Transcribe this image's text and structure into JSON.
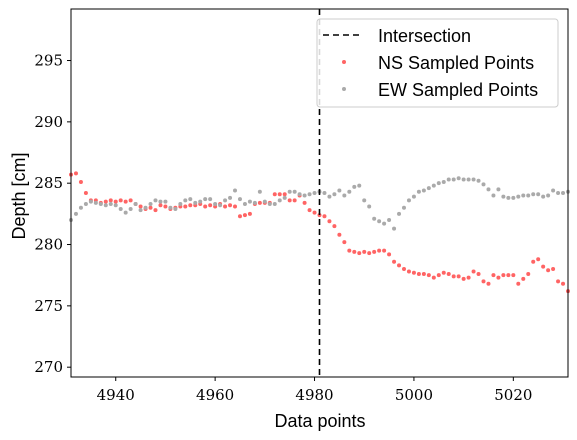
{
  "chart_data": {
    "type": "scatter",
    "xlabel": "Data points",
    "ylabel": "Depth [cm]",
    "xlim": [
      4931,
      5031
    ],
    "ylim": [
      269.2,
      299.2
    ],
    "xticks": [
      "4940",
      "4960",
      "4980",
      "5000",
      "5020"
    ],
    "yticks": [
      "270",
      "275",
      "280",
      "285",
      "290",
      "295"
    ],
    "grid": false,
    "legend_position": "top-right",
    "vline": {
      "name": "Intersection",
      "x": 4981,
      "color": "#000000",
      "style": "dashed"
    },
    "series": [
      {
        "name": "NS Sampled Points",
        "color": "#ff6464",
        "x": [
          4931,
          4932,
          4933,
          4934,
          4935,
          4936,
          4937,
          4938,
          4939,
          4940,
          4941,
          4942,
          4943,
          4944,
          4945,
          4946,
          4947,
          4948,
          4949,
          4950,
          4951,
          4952,
          4953,
          4954,
          4955,
          4956,
          4957,
          4958,
          4959,
          4960,
          4961,
          4962,
          4963,
          4964,
          4965,
          4966,
          4967,
          4968,
          4969,
          4970,
          4971,
          4972,
          4973,
          4974,
          4975,
          4976,
          4977,
          4978,
          4979,
          4980,
          4981,
          4982,
          4983,
          4984,
          4985,
          4986,
          4987,
          4988,
          4989,
          4990,
          4991,
          4992,
          4993,
          4994,
          4995,
          4996,
          4997,
          4998,
          4999,
          5000,
          5001,
          5002,
          5003,
          5004,
          5005,
          5006,
          5007,
          5008,
          5009,
          5010,
          5011,
          5012,
          5013,
          5014,
          5015,
          5016,
          5017,
          5018,
          5019,
          5020,
          5021,
          5022,
          5023,
          5024,
          5025,
          5026,
          5027,
          5028,
          5029,
          5030,
          5031
        ],
        "y": [
          285.7,
          285.8,
          285.1,
          284.2,
          283.6,
          283.6,
          283.4,
          283.5,
          283.6,
          283.5,
          283.6,
          283.5,
          283.6,
          283.3,
          283.1,
          282.9,
          283.0,
          282.8,
          283.2,
          283.1,
          282.9,
          283.0,
          283.1,
          283.1,
          283.2,
          283.2,
          283.3,
          283.1,
          283.2,
          283.1,
          283.3,
          283.1,
          283.2,
          283.1,
          282.3,
          282.4,
          282.5,
          283.3,
          283.4,
          283.4,
          283.4,
          284.1,
          284.1,
          284.1,
          283.6,
          283.6,
          284.0,
          283.4,
          282.8,
          282.6,
          282.4,
          282.3,
          281.9,
          281.5,
          280.8,
          280.2,
          279.5,
          279.4,
          279.3,
          279.4,
          279.3,
          279.4,
          279.5,
          279.5,
          279.2,
          278.6,
          278.3,
          278.0,
          277.8,
          277.7,
          277.6,
          277.6,
          277.5,
          277.3,
          277.5,
          277.7,
          277.6,
          277.4,
          277.4,
          277.2,
          277.3,
          277.8,
          277.6,
          277.0,
          276.8,
          277.5,
          277.3,
          277.5,
          277.5,
          277.5,
          276.8,
          277.2,
          277.6,
          278.6,
          278.8,
          278.2,
          277.9,
          278.0,
          277.0,
          276.8,
          276.2
        ]
      },
      {
        "name": "EW Sampled Points",
        "color": "#aaaaaa",
        "x": [
          4931,
          4932,
          4933,
          4934,
          4935,
          4936,
          4937,
          4938,
          4939,
          4940,
          4941,
          4942,
          4943,
          4944,
          4945,
          4946,
          4947,
          4948,
          4949,
          4950,
          4951,
          4952,
          4953,
          4954,
          4955,
          4956,
          4957,
          4958,
          4959,
          4960,
          4961,
          4962,
          4963,
          4964,
          4965,
          4966,
          4967,
          4968,
          4969,
          4970,
          4971,
          4972,
          4973,
          4974,
          4975,
          4976,
          4977,
          4978,
          4979,
          4980,
          4981,
          4982,
          4983,
          4984,
          4985,
          4986,
          4987,
          4988,
          4989,
          4990,
          4991,
          4992,
          4993,
          4994,
          4995,
          4996,
          4997,
          4998,
          4999,
          5000,
          5001,
          5002,
          5003,
          5004,
          5005,
          5006,
          5007,
          5008,
          5009,
          5010,
          5011,
          5012,
          5013,
          5014,
          5015,
          5016,
          5017,
          5018,
          5019,
          5020,
          5021,
          5022,
          5023,
          5024,
          5025,
          5026,
          5027,
          5028,
          5029,
          5030,
          5031
        ],
        "y": [
          282.0,
          282.5,
          283.0,
          283.3,
          283.5,
          283.4,
          283.3,
          283.2,
          283.3,
          283.2,
          282.9,
          282.6,
          282.9,
          283.3,
          282.8,
          283.0,
          283.3,
          283.6,
          283.5,
          283.5,
          283.0,
          282.9,
          283.3,
          283.6,
          283.7,
          283.4,
          283.5,
          283.7,
          283.7,
          283.3,
          283.2,
          283.6,
          283.8,
          284.4,
          283.7,
          283.3,
          283.5,
          283.4,
          284.3,
          283.5,
          283.3,
          283.3,
          283.6,
          283.8,
          284.3,
          284.3,
          284.1,
          284.0,
          284.1,
          284.2,
          284.3,
          284.2,
          283.9,
          284.1,
          284.4,
          284.0,
          284.3,
          284.7,
          284.8,
          283.6,
          283.1,
          282.1,
          281.9,
          281.7,
          282.0,
          281.3,
          282.5,
          283.0,
          283.6,
          283.9,
          284.3,
          284.4,
          284.6,
          284.8,
          285.0,
          285.1,
          285.3,
          285.3,
          285.4,
          285.3,
          285.3,
          285.3,
          285.2,
          284.9,
          284.5,
          284.0,
          284.5,
          283.9,
          283.8,
          283.8,
          283.9,
          284.0,
          284.0,
          284.1,
          284.1,
          283.9,
          284.0,
          284.4,
          284.2,
          284.2,
          284.3
        ]
      }
    ]
  }
}
